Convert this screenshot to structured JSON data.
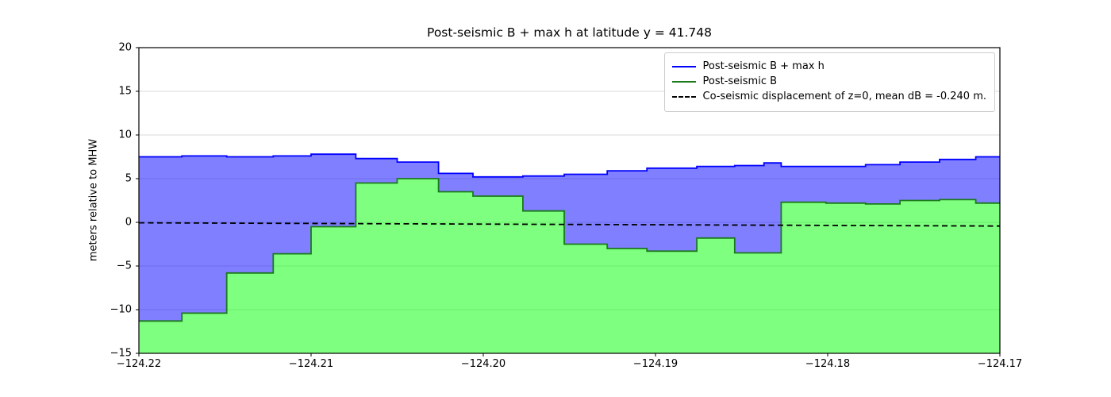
{
  "chart_data": {
    "type": "area",
    "title": "Post-seismic B + max h at latitude y = 41.748",
    "xlabel": "",
    "ylabel": "meters relative to MHW",
    "xlim": [
      -124.22,
      -124.17
    ],
    "ylim": [
      -15,
      20
    ],
    "grid": "horizontal",
    "legend_position": "upper right",
    "xticks": [
      -124.22,
      -124.21,
      -124.2,
      -124.19,
      -124.18,
      -124.17
    ],
    "xtick_labels": [
      "−124.22",
      "−124.21",
      "−124.20",
      "−124.19",
      "−124.18",
      "−124.17"
    ],
    "yticks": [
      -15,
      -10,
      -5,
      0,
      5,
      10,
      15,
      20
    ],
    "ytick_labels": [
      "−15",
      "−10",
      "−5",
      "0",
      "5",
      "10",
      "15",
      "20"
    ],
    "colors": {
      "blue_line": "#0000ff",
      "blue_fill": "rgba(0,0,255,0.5)",
      "green_line": "#1b7a1b",
      "green_fill": "rgba(0,255,0,0.5)",
      "dashed_line": "#000000",
      "grid_line": "#d9d9d9",
      "axis": "#000000"
    },
    "step_edges_x": [
      -124.22,
      -124.2175,
      -124.2149,
      -124.2122,
      -124.21,
      -124.2074,
      -124.205,
      -124.2026,
      -124.2006,
      -124.1986,
      -124.1977,
      -124.1953,
      -124.1928,
      -124.1905,
      -124.1876,
      -124.1854,
      -124.1837,
      -124.1827,
      -124.1801,
      -124.1778,
      -124.1758,
      -124.1735,
      -124.1714,
      -124.17
    ],
    "series": [
      {
        "name": "Post-seismic B + max h",
        "type": "step",
        "line_style": "solid",
        "line_color": "#0000ff",
        "fill_color": "rgba(0,0,255,0.5)",
        "fill_between": "Post-seismic B",
        "values": [
          7.5,
          7.6,
          7.5,
          7.6,
          7.8,
          7.3,
          6.9,
          5.6,
          5.2,
          5.2,
          5.3,
          5.5,
          5.9,
          6.2,
          6.4,
          6.5,
          6.8,
          6.4,
          6.4,
          6.6,
          6.9,
          7.2,
          7.5
        ]
      },
      {
        "name": "Post-seismic B",
        "type": "step",
        "line_style": "solid",
        "line_color": "#1b7a1b",
        "fill_color": "rgba(0,255,0,0.5)",
        "fill_to": "axis_bottom",
        "values": [
          -11.3,
          -10.4,
          -5.8,
          -3.6,
          -0.5,
          4.5,
          5.0,
          3.5,
          3.0,
          3.0,
          1.3,
          -2.5,
          -3.0,
          -3.3,
          -1.8,
          -3.5,
          -3.5,
          2.3,
          2.2,
          2.1,
          2.5,
          2.6,
          2.2
        ]
      },
      {
        "name": "Co-seismic displacement of z=0, mean dB = -0.240 m.",
        "type": "line",
        "line_style": "dashed",
        "line_color": "#000000",
        "x": [
          -124.22,
          -124.17
        ],
        "values": [
          -0.05,
          -0.43
        ]
      }
    ]
  }
}
